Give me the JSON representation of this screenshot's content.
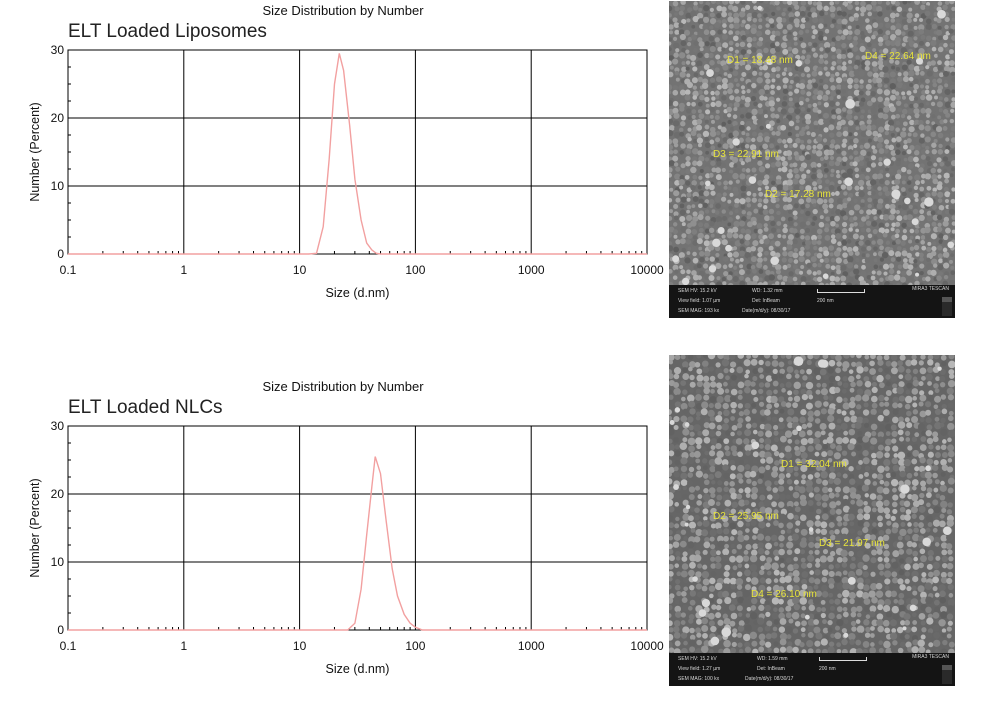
{
  "chart_data": [
    {
      "type": "line",
      "title": "Size Distribution by Number",
      "sample_label": "ELT Loaded Liposomes",
      "xlabel": "Size (d.nm)",
      "ylabel": "Number (Percent)",
      "xscale": "log",
      "xlim": [
        0.1,
        10000
      ],
      "ylim": [
        0,
        30
      ],
      "xticks": [
        "0.1",
        "1",
        "10",
        "100",
        "1000",
        "10000"
      ],
      "yticks": [
        "0",
        "10",
        "20",
        "30"
      ],
      "grid": true,
      "series_color": "#f2a0a0",
      "series": [
        {
          "x": [
            0.1,
            5,
            12,
            14,
            16,
            18,
            20,
            22,
            24,
            27,
            30,
            34,
            38,
            42,
            46,
            50,
            10000
          ],
          "y": [
            0,
            0,
            0,
            0.1,
            4,
            14,
            25,
            29.5,
            27,
            19,
            11,
            5,
            1.6,
            0.6,
            0.1,
            0,
            0
          ]
        }
      ]
    },
    {
      "type": "line",
      "title": "Size Distribution by Number",
      "sample_label": "ELT Loaded NLCs",
      "xlabel": "Size (d.nm)",
      "ylabel": "Number (Percent)",
      "xscale": "log",
      "xlim": [
        0.1,
        10000
      ],
      "ylim": [
        0,
        30
      ],
      "xticks": [
        "0.1",
        "1",
        "10",
        "100",
        "1000",
        "10000"
      ],
      "yticks": [
        "0",
        "10",
        "20",
        "30"
      ],
      "grid": true,
      "series_color": "#f2a0a0",
      "series": [
        {
          "x": [
            0.1,
            20,
            26,
            30,
            34,
            38,
            42,
            45,
            50,
            56,
            63,
            70,
            80,
            90,
            100,
            115,
            10000
          ],
          "y": [
            0,
            0,
            0,
            1,
            6,
            14,
            21,
            25.5,
            23,
            16,
            9,
            5,
            2.3,
            1,
            0.4,
            0,
            0
          ]
        }
      ]
    }
  ],
  "sem_images": [
    {
      "measurements": [
        {
          "label": "D1 = 18.48 nm"
        },
        {
          "label": "D4 = 22.64 nm"
        },
        {
          "label": "D3 = 22.91 nm"
        },
        {
          "label": "D2 = 17.28 nm"
        }
      ],
      "info": {
        "hv": "SEM HV: 15.2 kV",
        "view_field": "View field: 1.07 µm",
        "mag": "SEM MAG: 193 kx",
        "wd": "WD: 1.32 mm",
        "det": "Det: InBeam",
        "date": "Date(m/d/y): 08/30/17",
        "scale": "200 nm",
        "brand": "MIRA3 TESCAN"
      }
    },
    {
      "measurements": [
        {
          "label": "D1 = 32.04 nm"
        },
        {
          "label": "D2 = 25.95 nm"
        },
        {
          "label": "D3 = 21.97 nm"
        },
        {
          "label": "D4 = 26.10 nm"
        }
      ],
      "info": {
        "hv": "SEM HV: 15.2 kV",
        "view_field": "View field: 1.27 µm",
        "mag": "SEM MAG: 100 kx",
        "wd": "WD: 1.59 mm",
        "det": "Det: InBeam",
        "date": "Date(m/d/y): 08/30/17",
        "scale": "200 nm",
        "brand": "MIRA3 TESCAN"
      }
    }
  ]
}
